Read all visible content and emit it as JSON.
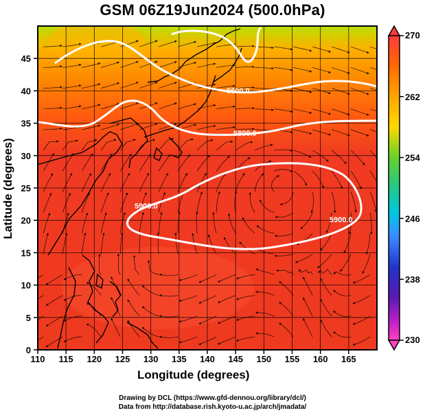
{
  "title": "GSM 06Z19Jun2024 (500.0hPa)",
  "x_axis": {
    "title": "Longitude (degrees)",
    "range": [
      110,
      170
    ],
    "ticks": [
      110,
      115,
      120,
      125,
      130,
      135,
      140,
      145,
      150,
      155,
      160,
      165
    ]
  },
  "y_axis": {
    "title": "Latitude  (degrees)",
    "range": [
      0,
      50
    ],
    "ticks": [
      0,
      5,
      10,
      15,
      20,
      25,
      30,
      35,
      40,
      45
    ]
  },
  "colorbar": {
    "range": [
      230,
      270
    ],
    "labels": [
      "270",
      "262",
      "254",
      "246",
      "238",
      "230"
    ],
    "label_values": [
      270,
      262,
      254,
      246,
      238,
      230
    ],
    "colors": [
      "#ff3333",
      "#ff6a00",
      "#ffb300",
      "#b8e000",
      "#33cc33",
      "#00d0d0",
      "#3080ff",
      "#1a2fcf",
      "#2020a0",
      "#b020c0",
      "#ff44cc"
    ]
  },
  "contours": [
    {
      "label": "5900.0",
      "value": 5900.0
    },
    {
      "label": "5900.0",
      "value": 5900.0
    },
    {
      "label": "5800.0",
      "value": 5800.0
    },
    {
      "label": "5600.0",
      "value": 5600.0
    }
  ],
  "colors": {
    "subtropical_field": "#ee3b22",
    "mid_field": "#ff8a00",
    "northern_field": "#8fd600",
    "contour": "#ffffff",
    "coastline": "#000000"
  },
  "credits": {
    "line1": "Drawing by DCL (https://www.gfd-dennou.org/library/dcl/)",
    "line2": "Data from http://database.rish.kyoto-u.ac.jp/arch/jmadata/"
  }
}
